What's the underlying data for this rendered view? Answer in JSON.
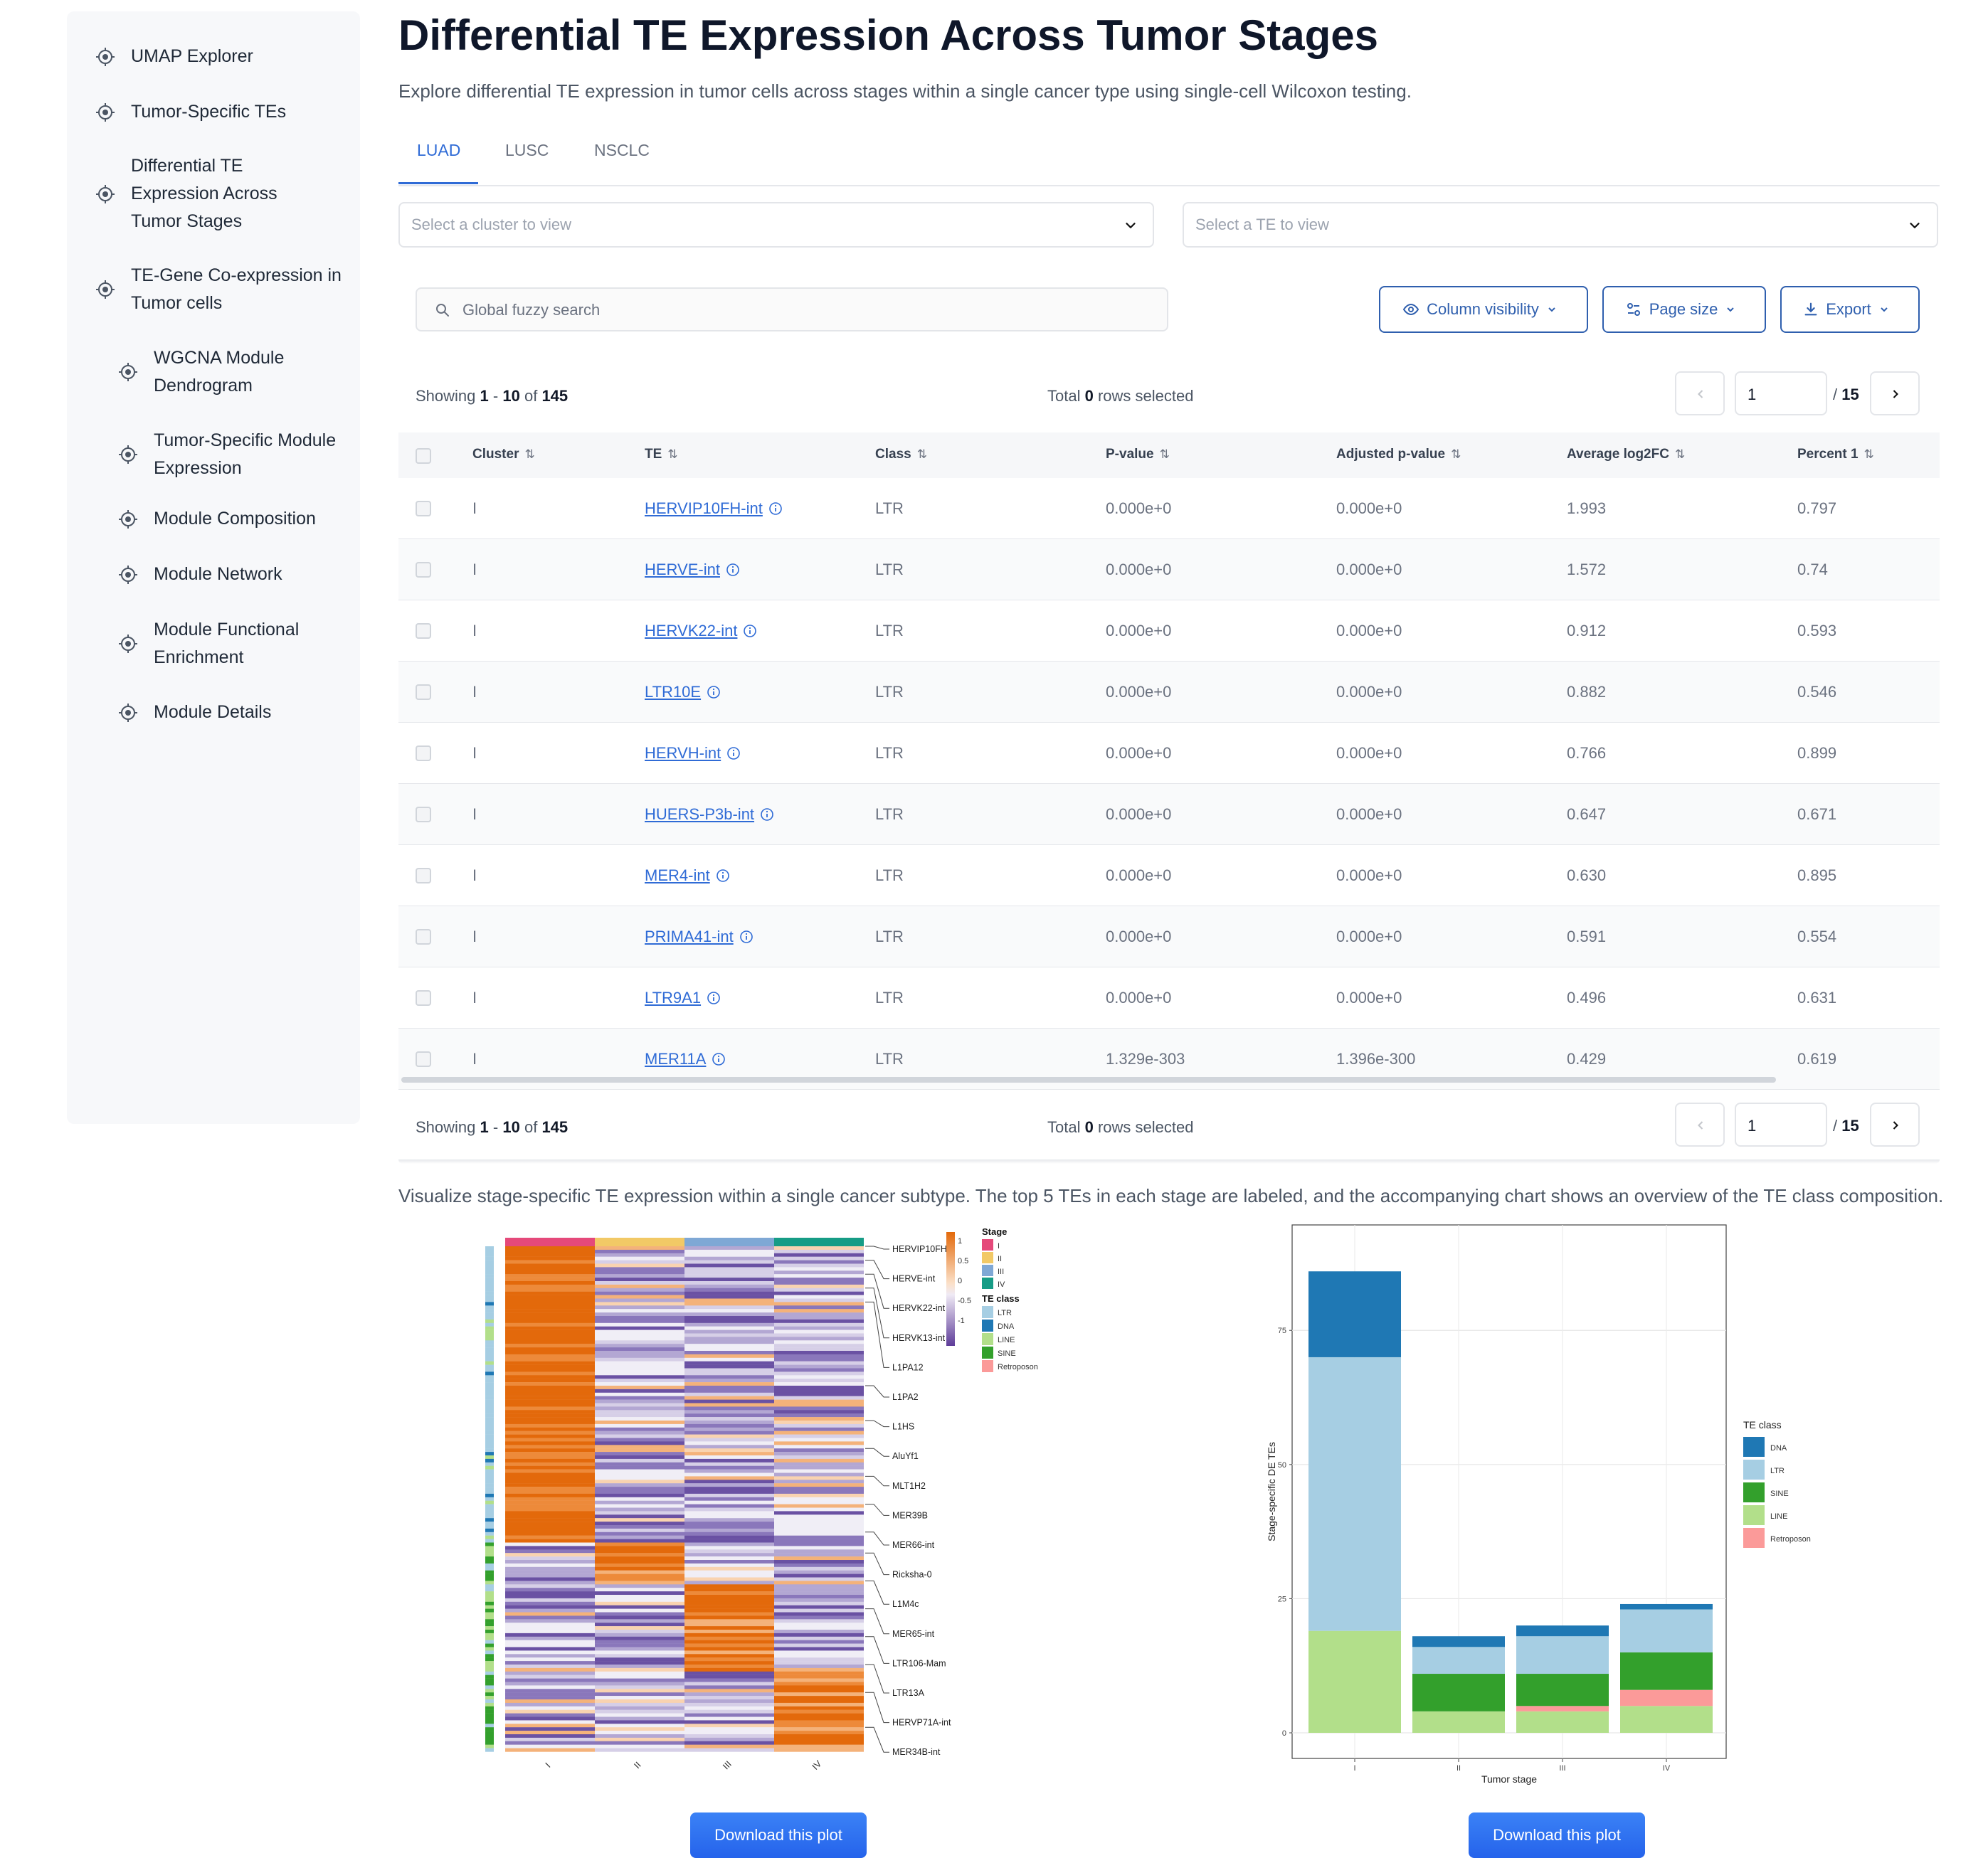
{
  "sidebar": {
    "items": [
      {
        "label": "UMAP Explorer"
      },
      {
        "label": "Tumor-Specific TEs"
      },
      {
        "label": "Differential TE Expression Across Tumor Stages"
      },
      {
        "label": "TE-Gene Co-expression in Tumor cells"
      },
      {
        "label": "WGCNA Module Dendrogram"
      },
      {
        "label": "Tumor-Specific Module Expression"
      },
      {
        "label": "Module Composition"
      },
      {
        "label": "Module Network"
      },
      {
        "label": "Module Functional Enrichment"
      },
      {
        "label": "Module Details"
      }
    ],
    "icon": "target-icon"
  },
  "page": {
    "title": "Differential TE Expression Across Tumor Stages",
    "subtitle": "Explore differential TE expression in tumor cells across stages within a single cancer type using single-cell Wilcoxon testing."
  },
  "tabs": [
    {
      "label": "LUAD",
      "active": true
    },
    {
      "label": "LUSC",
      "active": false
    },
    {
      "label": "NSCLC",
      "active": false
    }
  ],
  "selects": {
    "cluster_placeholder": "Select a cluster to view",
    "te_placeholder": "Select a TE to view"
  },
  "search": {
    "placeholder": "Global fuzzy search"
  },
  "toolbar": {
    "column_visibility": "Column visibility",
    "page_size": "Page size",
    "export": "Export"
  },
  "pagination": {
    "showing_prefix": "Showing",
    "from": "1",
    "dash": "-",
    "to": "10",
    "of": "of",
    "total_rows": "145",
    "total_label": "Total",
    "selected_count": "0",
    "selected_suffix": "rows selected",
    "page": "1",
    "page_sep": "/",
    "page_count": "15"
  },
  "table": {
    "columns": [
      "Cluster",
      "TE",
      "Class",
      "P-value",
      "Adjusted p-value",
      "Average log2FC",
      "Percent 1"
    ],
    "rows": [
      {
        "cluster": "I",
        "te": "HERVIP10FH-int",
        "class": "LTR",
        "p": "0.000e+0",
        "padj": "0.000e+0",
        "lfc": "1.993",
        "pct": "0.797"
      },
      {
        "cluster": "I",
        "te": "HERVE-int",
        "class": "LTR",
        "p": "0.000e+0",
        "padj": "0.000e+0",
        "lfc": "1.572",
        "pct": "0.74"
      },
      {
        "cluster": "I",
        "te": "HERVK22-int",
        "class": "LTR",
        "p": "0.000e+0",
        "padj": "0.000e+0",
        "lfc": "0.912",
        "pct": "0.593"
      },
      {
        "cluster": "I",
        "te": "LTR10E",
        "class": "LTR",
        "p": "0.000e+0",
        "padj": "0.000e+0",
        "lfc": "0.882",
        "pct": "0.546"
      },
      {
        "cluster": "I",
        "te": "HERVH-int",
        "class": "LTR",
        "p": "0.000e+0",
        "padj": "0.000e+0",
        "lfc": "0.766",
        "pct": "0.899"
      },
      {
        "cluster": "I",
        "te": "HUERS-P3b-int",
        "class": "LTR",
        "p": "0.000e+0",
        "padj": "0.000e+0",
        "lfc": "0.647",
        "pct": "0.671"
      },
      {
        "cluster": "I",
        "te": "MER4-int",
        "class": "LTR",
        "p": "0.000e+0",
        "padj": "0.000e+0",
        "lfc": "0.630",
        "pct": "0.895"
      },
      {
        "cluster": "I",
        "te": "PRIMA41-int",
        "class": "LTR",
        "p": "0.000e+0",
        "padj": "0.000e+0",
        "lfc": "0.591",
        "pct": "0.554"
      },
      {
        "cluster": "I",
        "te": "LTR9A1",
        "class": "LTR",
        "p": "0.000e+0",
        "padj": "0.000e+0",
        "lfc": "0.496",
        "pct": "0.631"
      },
      {
        "cluster": "I",
        "te": "MER11A",
        "class": "LTR",
        "p": "1.329e-303",
        "padj": "1.396e-300",
        "lfc": "0.429",
        "pct": "0.619"
      }
    ]
  },
  "plots_section": {
    "description": "Visualize stage-specific TE expression within a single cancer subtype. The top 5 TEs in each stage are labeled, and the accompanying chart shows an overview of the TE class composition.",
    "download_label": "Download this plot"
  },
  "heatmap": {
    "stages": [
      "I",
      "II",
      "III",
      "IV"
    ],
    "stage_colors": [
      "#e5497a",
      "#f2c966",
      "#7fa8d5",
      "#179c86"
    ],
    "row_labels": [
      "HERVIP10FH-i",
      "HERVE-int",
      "HERVK22-int",
      "HERVK13-int",
      "L1PA12",
      "L1PA2",
      "L1HS",
      "AluYf1",
      "MLT1H2",
      "MER39B",
      "MER66-int",
      "Ricksha-0",
      "L1M4c",
      "MER65-int",
      "LTR106-Mam",
      "LTR13A",
      "HERVP71A-int",
      "MER34B-int"
    ],
    "colorbar_ticks": [
      "1",
      "0.5",
      "0",
      "-0.5",
      "-1"
    ],
    "legend": {
      "stage_title": "Stage",
      "te_class_title": "TE class",
      "te_classes": [
        "LTR",
        "DNA",
        "LINE",
        "SINE",
        "Retroposon"
      ],
      "te_class_colors": [
        "#a6cee3",
        "#1f78b4",
        "#b2df8a",
        "#33a02c",
        "#fb9a99"
      ]
    }
  },
  "chart_data": {
    "type": "bar",
    "stacked": true,
    "categories": [
      "I",
      "II",
      "III",
      "IV"
    ],
    "series": [
      {
        "name": "LINE",
        "color": "#b2df8a",
        "values": [
          19,
          4,
          4,
          5
        ]
      },
      {
        "name": "Retroposon",
        "color": "#fb9a99",
        "values": [
          0,
          0,
          1,
          3
        ]
      },
      {
        "name": "SINE",
        "color": "#33a02c",
        "values": [
          0,
          7,
          6,
          7
        ]
      },
      {
        "name": "LTR",
        "color": "#a6cee3",
        "values": [
          51,
          5,
          7,
          8
        ]
      },
      {
        "name": "DNA",
        "color": "#1f78b4",
        "values": [
          16,
          2,
          2,
          1
        ]
      }
    ],
    "legend_order": [
      "DNA",
      "LTR",
      "SINE",
      "LINE",
      "Retroposon"
    ],
    "legend_title": "TE class",
    "xlabel": "Tumor stage",
    "ylabel": "Stage-specific DE TEs",
    "ylim": [
      0,
      92
    ],
    "yticks": [
      0,
      25,
      50,
      75
    ],
    "grid": true,
    "legend_position": "right"
  }
}
